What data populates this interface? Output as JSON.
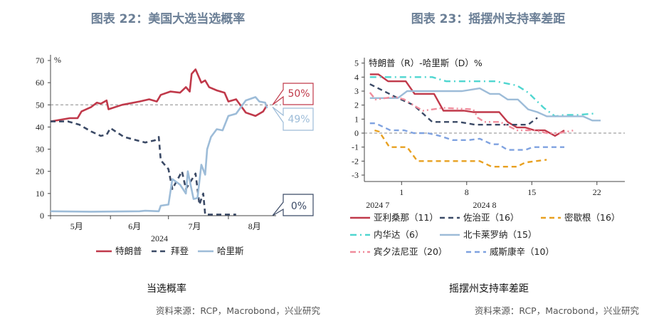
{
  "chart_data": [
    {
      "type": "line",
      "title": "图表 22：美国大选当选概率",
      "caption": "当选概率",
      "source": "资料来源：RCP，Macrobond，兴业研究",
      "ylabel": "%",
      "ylim": [
        0,
        70
      ],
      "yticks": [
        0,
        10,
        20,
        30,
        40,
        50,
        60,
        70
      ],
      "xlim": [
        "2024-05-01",
        "2024-08-22"
      ],
      "xticks": [
        {
          "label": "5月",
          "date": "2024-05-16"
        },
        {
          "label": "6月",
          "date": "2024-06-15"
        },
        {
          "label": "7月",
          "date": "2024-07-16"
        },
        {
          "label": "8月",
          "date": "2024-08-16"
        }
      ],
      "xyear": "2024",
      "reference_line": 50,
      "legend_position": "bottom",
      "callouts": [
        {
          "text": "50%",
          "color": "#c0394a"
        },
        {
          "text": "49%",
          "color": "#9dbcd8"
        },
        {
          "text": "0%",
          "color": "#3b4a66"
        }
      ],
      "series": [
        {
          "name": "特朗普",
          "color": "#c0394a",
          "style": "solid",
          "points": [
            [
              "2024-05-01",
              42.5
            ],
            [
              "2024-05-11",
              44
            ],
            [
              "2024-05-15",
              44
            ],
            [
              "2024-05-17",
              47
            ],
            [
              "2024-05-22",
              49
            ],
            [
              "2024-05-25",
              51
            ],
            [
              "2024-05-27",
              50.5
            ],
            [
              "2024-05-30",
              52
            ],
            [
              "2024-05-31",
              48
            ],
            [
              "2024-06-07",
              50
            ],
            [
              "2024-06-16",
              51.5
            ],
            [
              "2024-06-21",
              52.5
            ],
            [
              "2024-06-25",
              51.5
            ],
            [
              "2024-06-27",
              54.5
            ],
            [
              "2024-07-02",
              56
            ],
            [
              "2024-07-07",
              55.5
            ],
            [
              "2024-07-10",
              58
            ],
            [
              "2024-07-12",
              56
            ],
            [
              "2024-07-13",
              64
            ],
            [
              "2024-07-15",
              66
            ],
            [
              "2024-07-18",
              60
            ],
            [
              "2024-07-20",
              61
            ],
            [
              "2024-07-22",
              58
            ],
            [
              "2024-07-26",
              56.5
            ],
            [
              "2024-07-30",
              55.5
            ],
            [
              "2024-08-01",
              51.5
            ],
            [
              "2024-08-05",
              52.5
            ],
            [
              "2024-08-10",
              46.5
            ],
            [
              "2024-08-15",
              45
            ],
            [
              "2024-08-19",
              47
            ],
            [
              "2024-08-20",
              48.5
            ],
            [
              "2024-08-21",
              50
            ]
          ]
        },
        {
          "name": "拜登",
          "color": "#3b4a66",
          "style": "dashed",
          "points": [
            [
              "2024-05-01",
              42.5
            ],
            [
              "2024-05-10",
              42.5
            ],
            [
              "2024-05-16",
              41
            ],
            [
              "2024-05-22",
              38
            ],
            [
              "2024-05-27",
              36
            ],
            [
              "2024-05-30",
              36.5
            ],
            [
              "2024-06-01",
              39.5
            ],
            [
              "2024-06-08",
              35.5
            ],
            [
              "2024-06-19",
              33
            ],
            [
              "2024-06-24",
              34
            ],
            [
              "2024-06-26",
              35.5
            ],
            [
              "2024-06-27",
              25
            ],
            [
              "2024-07-01",
              21
            ],
            [
              "2024-07-03",
              12
            ],
            [
              "2024-07-08",
              20
            ],
            [
              "2024-07-10",
              12
            ],
            [
              "2024-07-15",
              19
            ],
            [
              "2024-07-17",
              5
            ],
            [
              "2024-07-19",
              10
            ],
            [
              "2024-07-20",
              0.5
            ],
            [
              "2024-08-05",
              0.5
            ]
          ]
        },
        {
          "name": "哈里斯",
          "color": "#9dbcd8",
          "style": "solid",
          "points": [
            [
              "2024-05-01",
              2
            ],
            [
              "2024-05-22",
              1.8
            ],
            [
              "2024-06-16",
              2
            ],
            [
              "2024-06-19",
              2.2
            ],
            [
              "2024-06-26",
              2
            ],
            [
              "2024-06-27",
              4.5
            ],
            [
              "2024-07-01",
              5
            ],
            [
              "2024-07-03",
              16.5
            ],
            [
              "2024-07-07",
              14
            ],
            [
              "2024-07-10",
              10
            ],
            [
              "2024-07-11",
              20
            ],
            [
              "2024-07-14",
              7.5
            ],
            [
              "2024-07-16",
              8
            ],
            [
              "2024-07-18",
              23
            ],
            [
              "2024-07-20",
              18.5
            ],
            [
              "2024-07-21",
              30
            ],
            [
              "2024-07-23",
              35.5
            ],
            [
              "2024-07-26",
              39
            ],
            [
              "2024-07-29",
              38.5
            ],
            [
              "2024-08-01",
              45
            ],
            [
              "2024-08-05",
              46
            ],
            [
              "2024-08-10",
              52
            ],
            [
              "2024-08-15",
              53.5
            ],
            [
              "2024-08-17",
              51.5
            ],
            [
              "2024-08-20",
              51
            ],
            [
              "2024-08-21",
              48.5
            ]
          ]
        }
      ]
    },
    {
      "type": "line",
      "title": "图表 23：摇摆州支持率差距",
      "caption": "摇摆州支持率差距",
      "source": "资料来源：RCP，Macrobond，兴业研究",
      "ylabel": "特朗普（R）-哈里斯（D）%",
      "ylim": [
        -3,
        5
      ],
      "yticks": [
        -3,
        -2,
        -1,
        0,
        1,
        2,
        3,
        4,
        5
      ],
      "xlim": [
        -3,
        25
      ],
      "xticks": [
        1,
        8,
        15,
        22
      ],
      "xmonths": [
        {
          "label": "2024 7",
          "at": 0
        },
        {
          "label": "2024 8",
          "at": 11.5
        }
      ],
      "reference_line": 0,
      "legend_position": "bottom",
      "series": [
        {
          "name": "亚利桑那（11）",
          "color": "#c0394a",
          "style": "solid",
          "points": [
            [
              -2.4,
              4.2
            ],
            [
              -1.5,
              4.2
            ],
            [
              -0.45,
              3.7
            ],
            [
              1.45,
              3.7
            ],
            [
              2.4,
              2.8
            ],
            [
              4.5,
              2.8
            ],
            [
              5.5,
              1.6
            ],
            [
              7.7,
              1.6
            ],
            [
              8.7,
              1.5
            ],
            [
              11.5,
              1.5
            ],
            [
              12.4,
              0.8
            ],
            [
              13.4,
              0.4
            ],
            [
              14.3,
              0.4
            ],
            [
              15.3,
              0.2
            ],
            [
              16.4,
              0.2
            ],
            [
              17.5,
              -0.2
            ],
            [
              18.5,
              0.2
            ]
          ]
        },
        {
          "name": "佐治亚（16）",
          "color": "#3b4a66",
          "style": "dashed",
          "points": [
            [
              -2.4,
              3.5
            ],
            [
              0.6,
              2.5
            ],
            [
              2.3,
              2.0
            ],
            [
              4.3,
              0.8
            ],
            [
              7.2,
              0.8
            ],
            [
              8.9,
              0.6
            ],
            [
              12.6,
              0.6
            ],
            [
              14.6,
              0.6
            ],
            [
              15.6,
              1.1
            ]
          ]
        },
        {
          "name": "密歇根（16）",
          "color": "#e8a020",
          "style": "dashed",
          "points": [
            [
              -1.9,
              0.2
            ],
            [
              -1.4,
              0.1
            ],
            [
              -0.3,
              -1
            ],
            [
              1.6,
              -1
            ],
            [
              2.7,
              -2
            ],
            [
              9.4,
              -2
            ],
            [
              10.7,
              -2.4
            ],
            [
              13.4,
              -2.4
            ],
            [
              14.3,
              -2.1
            ],
            [
              16.6,
              -1.9
            ]
          ]
        },
        {
          "name": "内华达（6）",
          "color": "#4fd6d0",
          "style": "dashdot",
          "points": [
            [
              -2.4,
              4
            ],
            [
              4.3,
              4
            ],
            [
              5.8,
              3.7
            ],
            [
              11.1,
              3.7
            ],
            [
              13.4,
              3.4
            ],
            [
              14.6,
              2.9
            ],
            [
              16.3,
              1.8
            ],
            [
              17.5,
              1.2
            ],
            [
              18.5,
              1.3
            ],
            [
              20,
              1.3
            ],
            [
              21.7,
              1.4
            ]
          ]
        },
        {
          "name": "北卡莱罗纳（15）",
          "color": "#9dbcd8",
          "style": "solid",
          "points": [
            [
              -2.4,
              2.5
            ],
            [
              0.6,
              2.5
            ],
            [
              1.6,
              3
            ],
            [
              7.5,
              3
            ],
            [
              9.4,
              3.2
            ],
            [
              10.5,
              2.8
            ],
            [
              11.5,
              2.8
            ],
            [
              12.4,
              2.4
            ],
            [
              13.5,
              2.4
            ],
            [
              14.6,
              1.7
            ],
            [
              15.6,
              1.5
            ],
            [
              16.6,
              1.2
            ],
            [
              20.5,
              1.2
            ],
            [
              21.5,
              0.9
            ],
            [
              22.4,
              0.9
            ]
          ]
        },
        {
          "name": "宾夕法尼亚（20）",
          "color": "#f08c9c",
          "style": "dashdotdot",
          "points": [
            [
              -2.4,
              2.9
            ],
            [
              -1.8,
              2.4
            ],
            [
              0.3,
              2.6
            ],
            [
              1.3,
              2.4
            ],
            [
              2.5,
              1.9
            ],
            [
              3.3,
              1.6
            ],
            [
              5.5,
              1.8
            ],
            [
              8.7,
              1.7
            ],
            [
              9.2,
              1.1
            ],
            [
              9.9,
              0.8
            ],
            [
              11.6,
              0.8
            ],
            [
              13.4,
              0.2
            ],
            [
              15.3,
              0.2
            ],
            [
              16.6,
              0
            ],
            [
              18,
              0
            ],
            [
              19.5,
              0.2
            ]
          ]
        },
        {
          "name": "威斯康辛（10）",
          "color": "#7fa2e0",
          "style": "dashed",
          "points": [
            [
              -2.4,
              0.7
            ],
            [
              -1.8,
              0.7
            ],
            [
              -0.2,
              0.2
            ],
            [
              1.3,
              0.2
            ],
            [
              2.3,
              0
            ],
            [
              3.8,
              0
            ],
            [
              5.1,
              -0.2
            ],
            [
              6.5,
              -0.5
            ],
            [
              8.2,
              -0.5
            ],
            [
              9.4,
              -0.4
            ],
            [
              10.7,
              -0.8
            ],
            [
              11.4,
              -0.8
            ],
            [
              12.4,
              -1.2
            ],
            [
              14.3,
              -1.2
            ],
            [
              15.1,
              -1
            ],
            [
              18.5,
              -1
            ]
          ]
        }
      ]
    }
  ]
}
